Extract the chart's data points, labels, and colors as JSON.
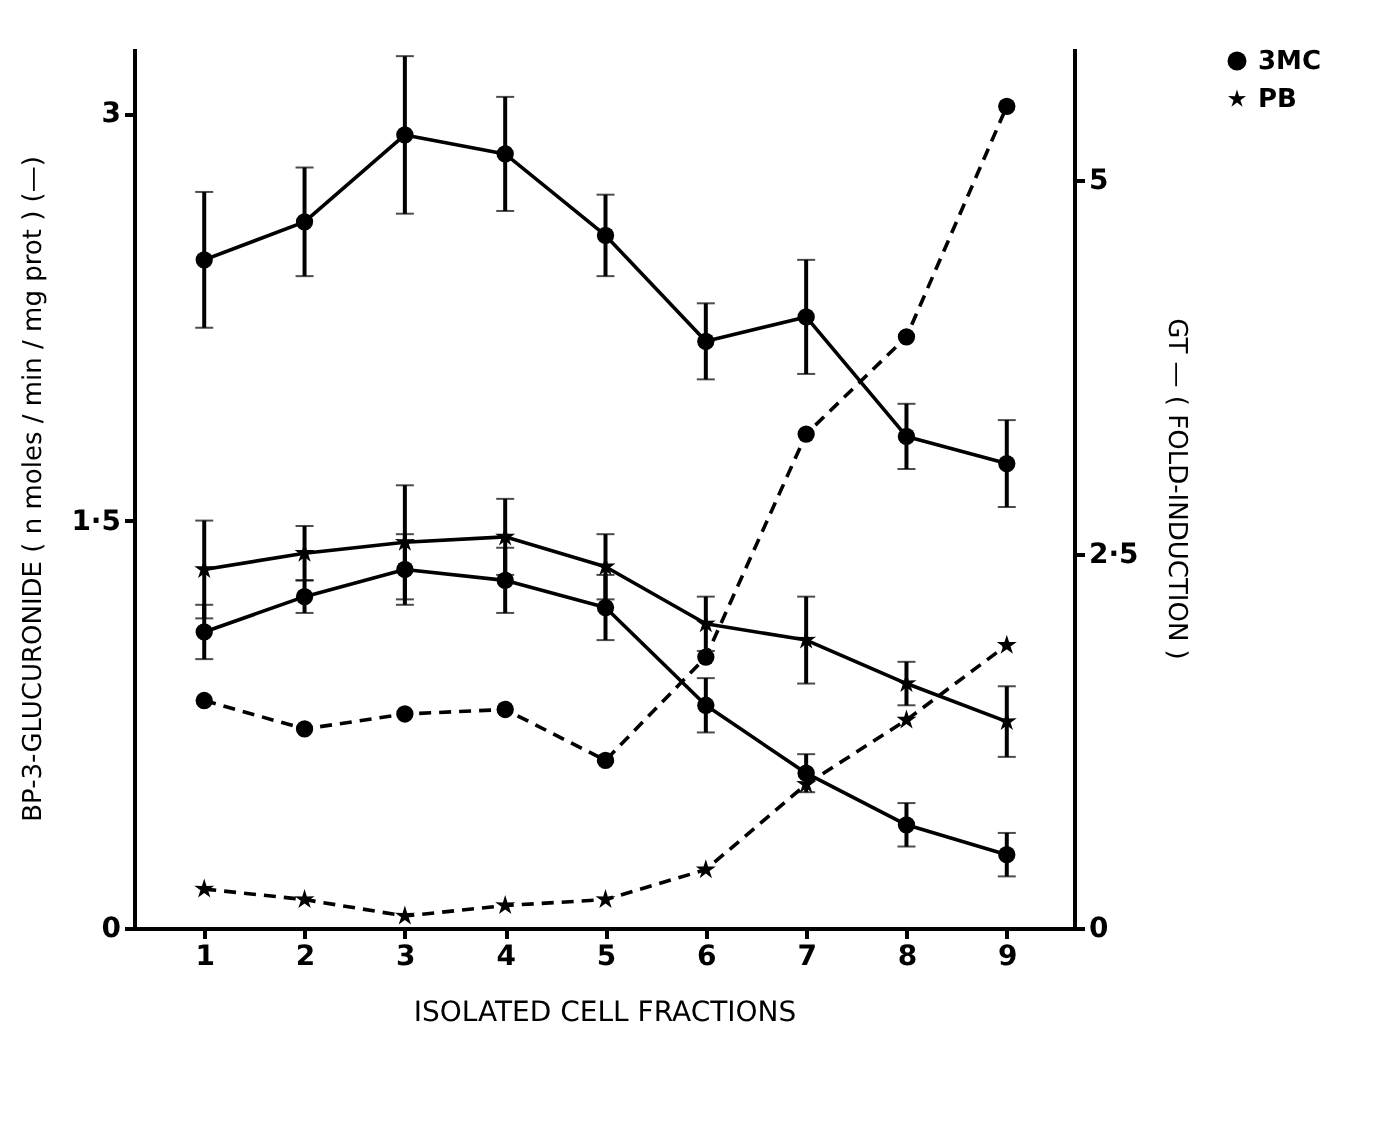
{
  "chart_data": {
    "type": "line",
    "xlabel": "ISOLATED CELL FRACTIONS",
    "ylabel": "BP-3-GLUCURONIDE ( n moles / min / mg prot ) (—)",
    "y2label": "GT — ( FOLD-INDUCTION )",
    "x": [
      1,
      2,
      3,
      4,
      5,
      6,
      7,
      8,
      9
    ],
    "xlim": [
      0.3,
      9.67
    ],
    "xticks": [
      1,
      2,
      3,
      4,
      5,
      6,
      7,
      8,
      9
    ],
    "ylim": [
      0,
      3.24
    ],
    "yticks": [
      0,
      {
        "value": 1.5,
        "label": "1·5"
      },
      3
    ],
    "y2lim": [
      0,
      5.88
    ],
    "y2ticks": [
      0,
      {
        "value": 2.5,
        "label": "2·5"
      },
      5
    ],
    "grid": false,
    "legend": "right",
    "series": [
      {
        "color": "#000000",
        "marker": "circle",
        "line_style": "solid",
        "values": [
          2.46,
          2.6,
          2.92,
          2.85,
          2.55,
          2.16,
          2.25,
          1.81,
          1.71
        ],
        "errors": [
          0.25,
          0.2,
          0.29,
          0.21,
          0.15,
          0.14,
          0.21,
          0.12,
          0.16
        ]
      },
      {
        "color": "#000000",
        "marker": "star",
        "line_style": "solid",
        "values": [
          1.32,
          1.38,
          1.42,
          1.44,
          1.33,
          1.12,
          1.06,
          0.9,
          0.76
        ],
        "errors": [
          0.18,
          0.1,
          0.21,
          0.14,
          0.12,
          0.1,
          0.16,
          0.08,
          0.13
        ]
      },
      {
        "color": "#000000",
        "marker": "circle",
        "line_style": "solid",
        "values": [
          1.09,
          1.22,
          1.32,
          1.28,
          1.18,
          0.82,
          0.57,
          0.38,
          0.27
        ],
        "errors": [
          0.1,
          0.06,
          0.13,
          0.12,
          0.12,
          0.1,
          0.07,
          0.08,
          0.08
        ]
      },
      {
        "name": "3MC",
        "color": "#000000",
        "marker": "circle",
        "line_style": "dashed",
        "axis": "y2",
        "values": [
          1.52,
          1.33,
          1.43,
          1.46,
          1.12,
          1.81,
          3.3,
          3.95,
          5.49
        ]
      },
      {
        "name": "PB",
        "color": "#000000",
        "marker": "star",
        "line_style": "dashed",
        "axis": "y2",
        "values": [
          0.26,
          0.19,
          0.08,
          0.15,
          0.19,
          0.39,
          0.96,
          1.39,
          1.89
        ]
      }
    ]
  }
}
